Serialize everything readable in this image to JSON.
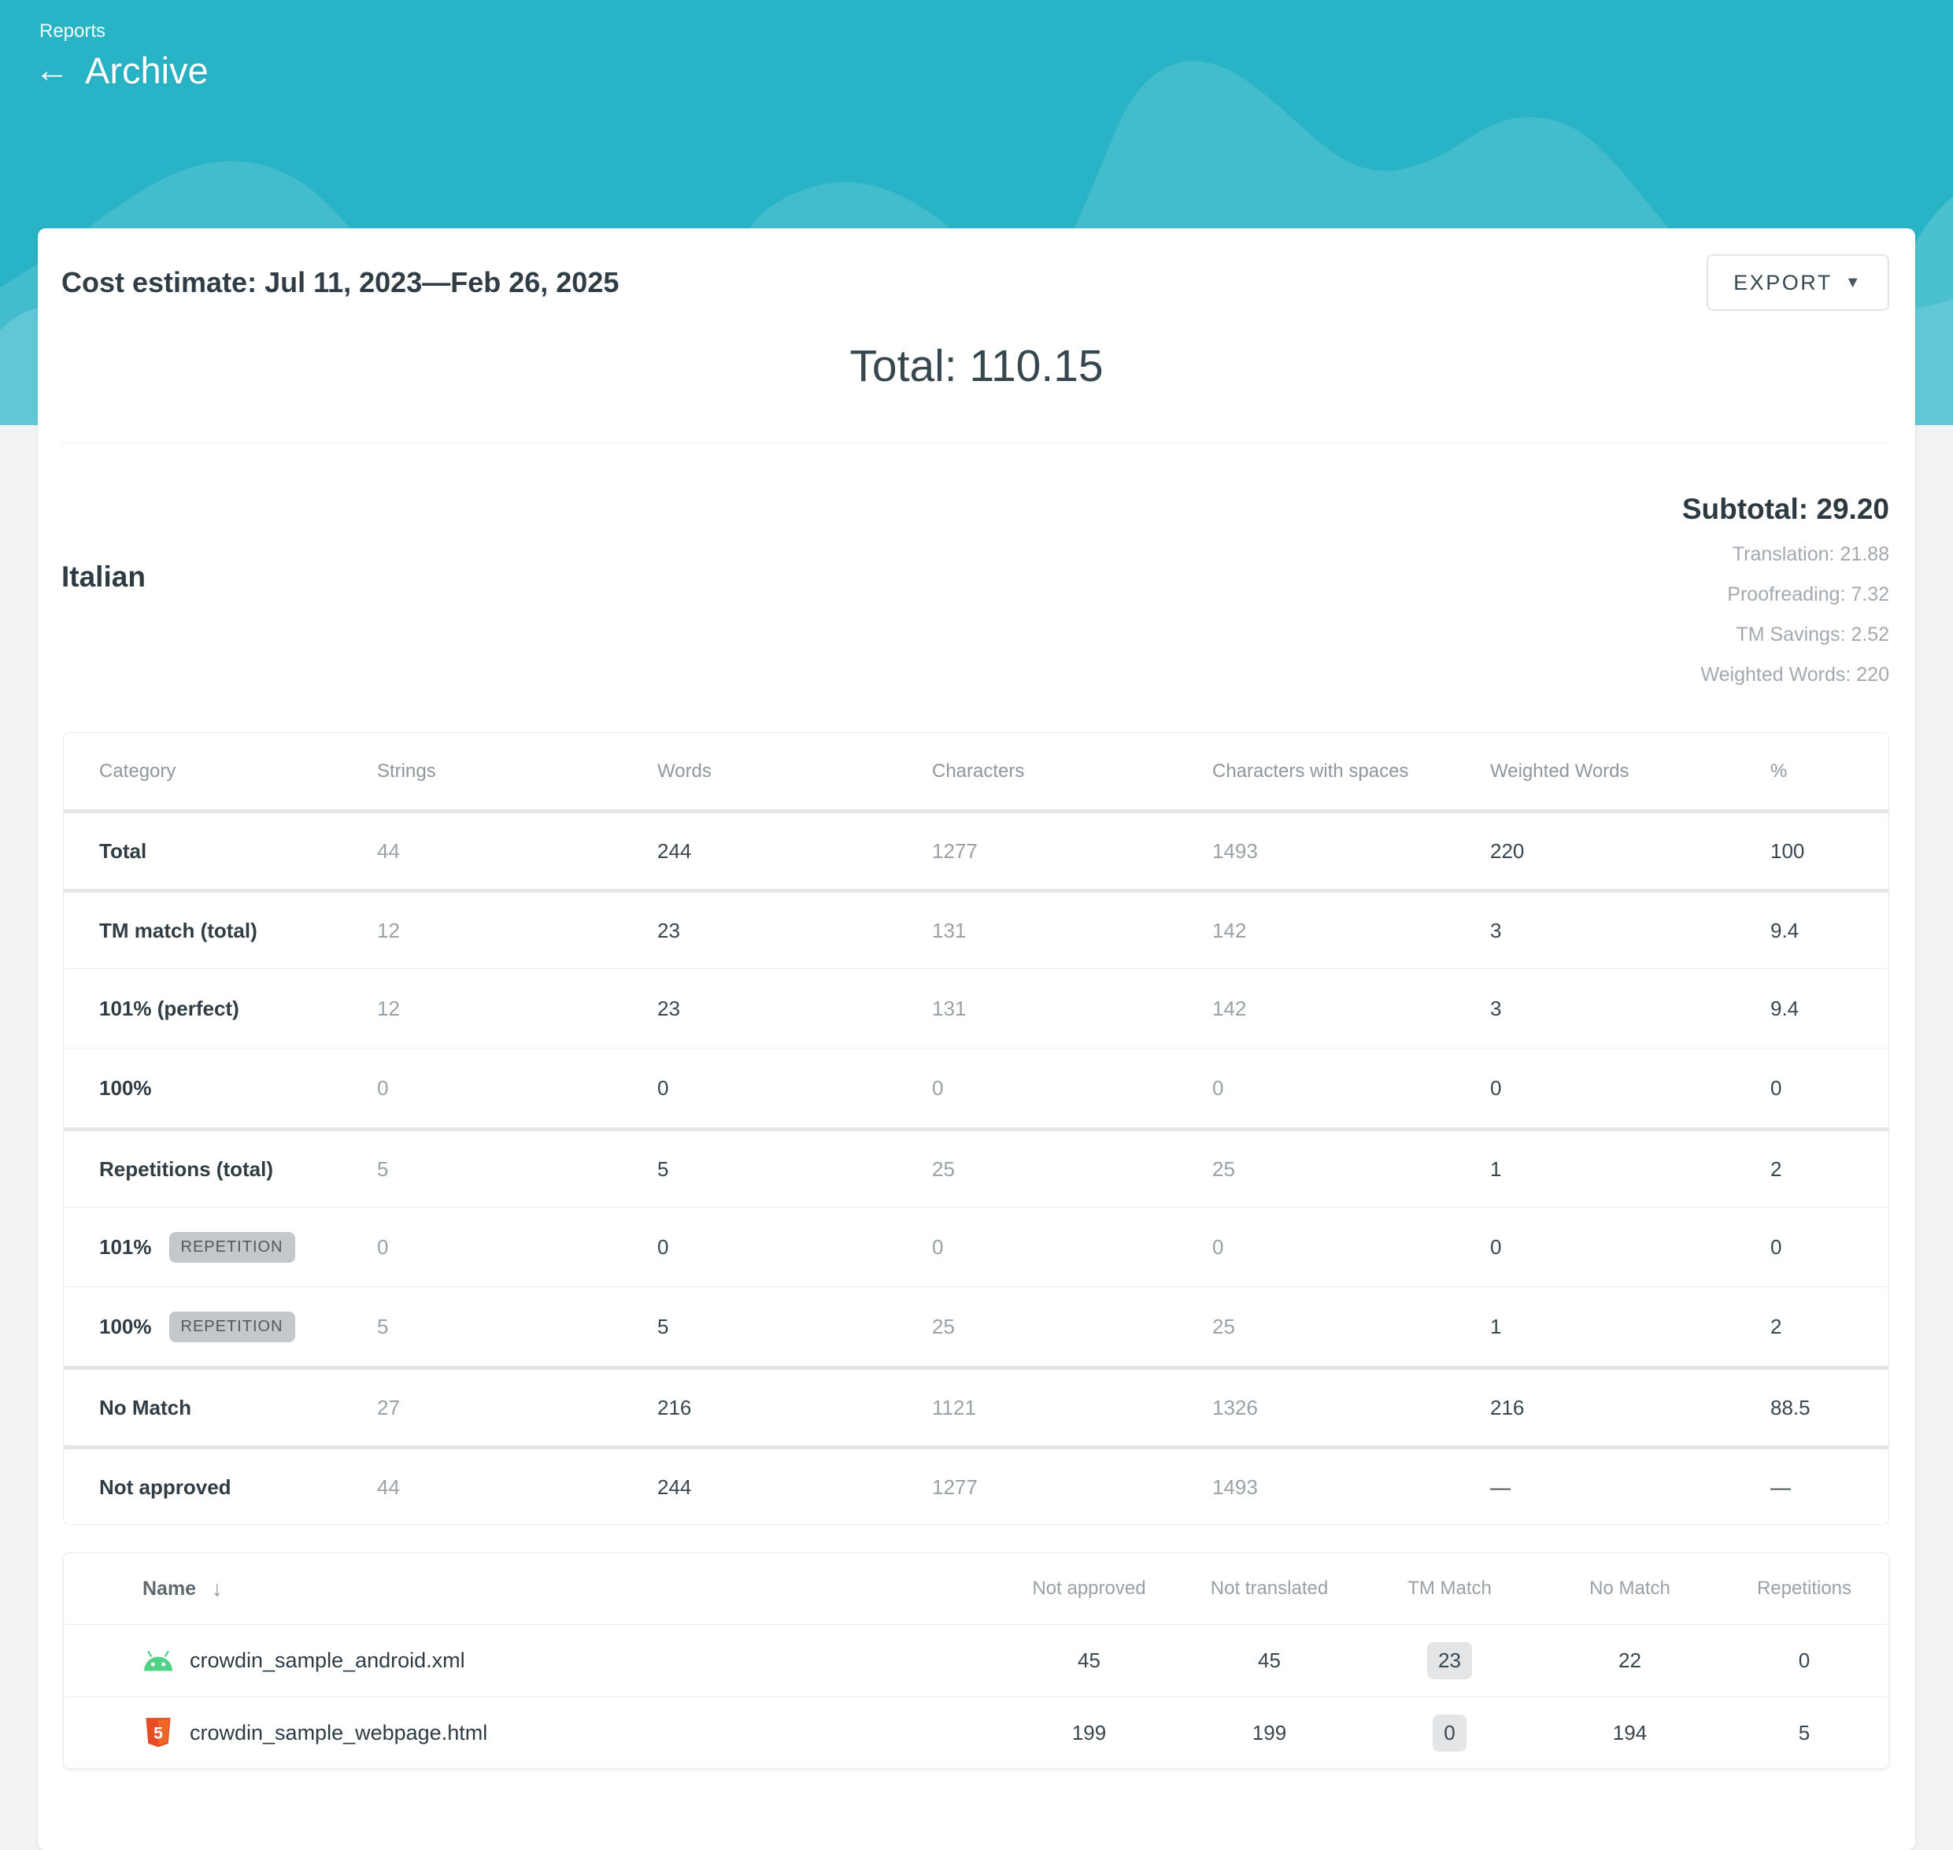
{
  "header": {
    "breadcrumb": "Reports",
    "back_arrow": "←",
    "title": "Archive"
  },
  "report": {
    "title": "Cost estimate: Jul 11, 2023—Feb 26, 2025",
    "export_label": "EXPORT",
    "export_caret": "▼",
    "total": "Total: 110.15",
    "language": {
      "name": "Italian",
      "subtotal": "Subtotal: 29.20",
      "details": [
        "Translation: 21.88",
        "Proofreading: 7.32",
        "TM Savings: 2.52",
        "Weighted Words: 220"
      ]
    },
    "category_table": {
      "columns": [
        "Category",
        "Strings",
        "Words",
        "Characters",
        "Characters with spaces",
        "Weighted Words",
        "%"
      ],
      "groups": [
        [
          {
            "label": "Total",
            "badge": null,
            "values": [
              "44",
              "244",
              "1277",
              "1493",
              "220",
              "100"
            ]
          }
        ],
        [
          {
            "label": "TM match (total)",
            "badge": null,
            "values": [
              "12",
              "23",
              "131",
              "142",
              "3",
              "9.4"
            ]
          },
          {
            "label": "101% (perfect)",
            "badge": null,
            "values": [
              "12",
              "23",
              "131",
              "142",
              "3",
              "9.4"
            ]
          },
          {
            "label": "100%",
            "badge": null,
            "values": [
              "0",
              "0",
              "0",
              "0",
              "0",
              "0"
            ]
          }
        ],
        [
          {
            "label": "Repetitions (total)",
            "badge": null,
            "values": [
              "5",
              "5",
              "25",
              "25",
              "1",
              "2"
            ]
          },
          {
            "label": "101%",
            "badge": "REPETITION",
            "values": [
              "0",
              "0",
              "0",
              "0",
              "0",
              "0"
            ]
          },
          {
            "label": "100%",
            "badge": "REPETITION",
            "values": [
              "5",
              "5",
              "25",
              "25",
              "1",
              "2"
            ]
          }
        ],
        [
          {
            "label": "No Match",
            "badge": null,
            "values": [
              "27",
              "216",
              "1121",
              "1326",
              "216",
              "88.5"
            ]
          }
        ],
        [
          {
            "label": "Not approved",
            "badge": null,
            "values": [
              "44",
              "244",
              "1277",
              "1493",
              "—",
              "—"
            ]
          }
        ]
      ]
    },
    "files_table": {
      "name_column": "Name",
      "sort_icon": "↓",
      "columns": [
        "Not approved",
        "Not translated",
        "TM Match",
        "No Match",
        "Repetitions"
      ],
      "badge_column_index": 2,
      "rows": [
        {
          "icon": "android-icon",
          "name": "crowdin_sample_android.xml",
          "values": [
            "45",
            "45",
            "23",
            "22",
            "0"
          ]
        },
        {
          "icon": "html5-icon",
          "name": "crowdin_sample_webpage.html",
          "values": [
            "199",
            "199",
            "0",
            "194",
            "5"
          ]
        }
      ]
    }
  },
  "colors": {
    "header_teal": "#28b4c6",
    "android_green": "#50d387",
    "html5_orange": "#e44d26",
    "html5_orange_light": "#f16529",
    "badge_gray": "#c5c8ca",
    "tm_badge_gray": "#e3e5e7"
  }
}
